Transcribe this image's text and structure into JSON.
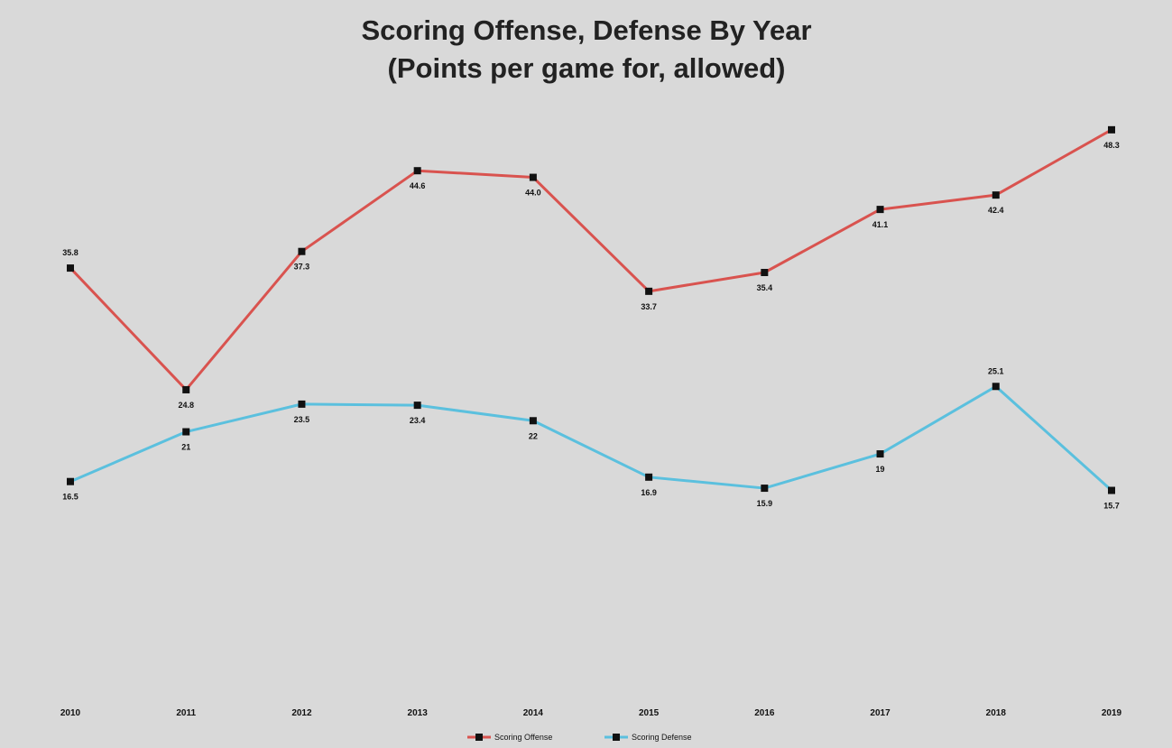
{
  "chart_data": {
    "type": "line",
    "title": "Scoring Offense, Defense By Year",
    "subtitle": "(Points per game for, allowed)",
    "categories": [
      "2010",
      "2011",
      "2012",
      "2013",
      "2014",
      "2015",
      "2016",
      "2017",
      "2018",
      "2019"
    ],
    "series": [
      {
        "name": "Scoring Offense",
        "color": "#d9534f",
        "values": [
          35.8,
          24.8,
          37.3,
          44.6,
          44.0,
          33.7,
          35.4,
          41.1,
          42.4,
          48.3
        ],
        "labels": [
          "35.8",
          "24.8",
          "37.3",
          "44.6",
          "44.0",
          "33.7",
          "35.4",
          "41.1",
          "42.4",
          "48.3"
        ]
      },
      {
        "name": "Scoring Defense",
        "color": "#5bc0de",
        "values": [
          16.5,
          21,
          23.5,
          23.4,
          22,
          16.9,
          15.9,
          19,
          25.1,
          15.7
        ],
        "labels": [
          "16.5",
          "21",
          "23.5",
          "23.4",
          "22",
          "16.9",
          "15.9",
          "19",
          "25.1",
          "15.7"
        ]
      }
    ],
    "xlabel": "",
    "ylabel": "",
    "ylim": [
      0,
      50
    ],
    "grid": false,
    "y_axis_visible": false,
    "legend_position": "bottom-center"
  }
}
